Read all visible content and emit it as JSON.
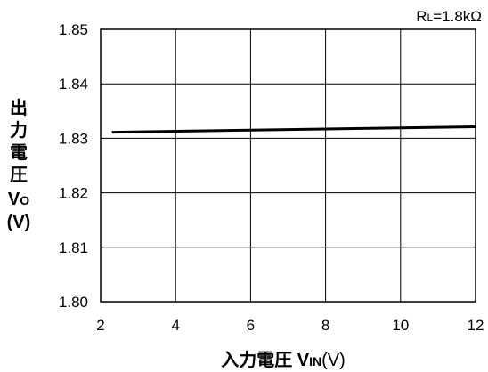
{
  "chart_data": {
    "type": "line",
    "condition_label": {
      "main": "R",
      "sub": "L",
      "rest": "=1.8kΩ"
    },
    "xlabel": {
      "main": "入力電圧 V",
      "sub": "IN",
      "rest": "(V)"
    },
    "ylabel": {
      "chars": [
        "出",
        "力",
        "電",
        "圧"
      ],
      "symbol": "V",
      "symbol_sub": "O",
      "unit": "(V)"
    },
    "xlim": [
      2,
      12
    ],
    "ylim": [
      1.8,
      1.85
    ],
    "x_ticks": [
      2,
      4,
      6,
      8,
      10,
      12
    ],
    "x_tick_labels": [
      "2",
      "4",
      "6",
      "8",
      "10",
      "12"
    ],
    "y_ticks": [
      1.8,
      1.81,
      1.82,
      1.83,
      1.84,
      1.85
    ],
    "y_tick_labels": [
      "1.80",
      "1.81",
      "1.82",
      "1.83",
      "1.84",
      "1.85"
    ],
    "grid": true,
    "series": [
      {
        "x": [
          2.3,
          4,
          6,
          8,
          10,
          12
        ],
        "y": [
          1.8311,
          1.8313,
          1.8315,
          1.8317,
          1.8319,
          1.8321
        ]
      }
    ]
  }
}
